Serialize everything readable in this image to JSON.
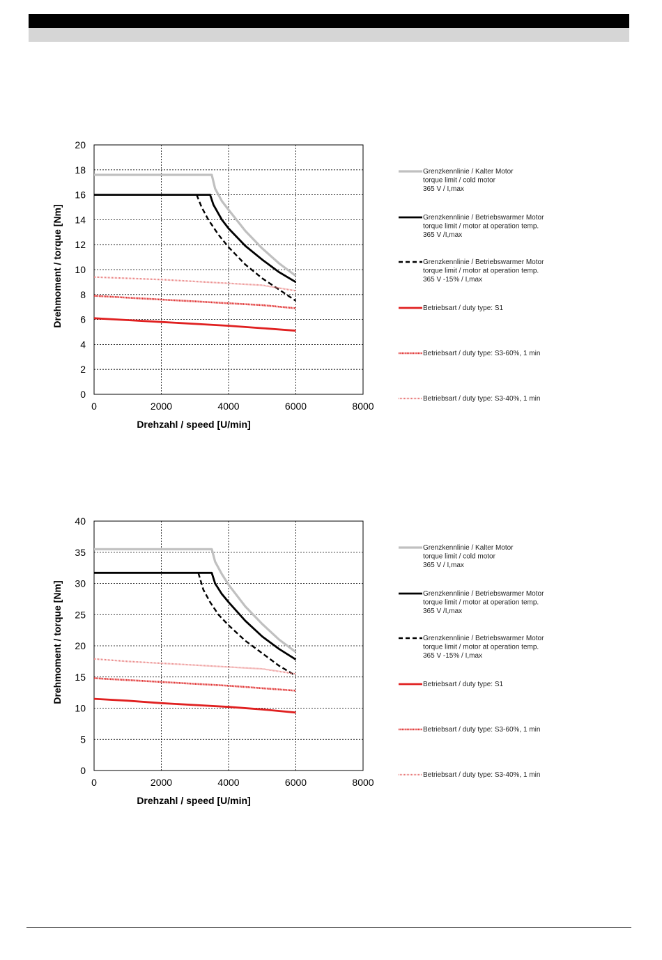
{
  "colors": {
    "cold_limit": "#c0c0c0",
    "warm_limit": "#000000",
    "warm_limit_reduced": "#000000",
    "s1": "#e02020",
    "s3_60": "#e03030",
    "s3_40": "#e87878",
    "grid": "#000000"
  },
  "chart_data": [
    {
      "type": "line",
      "xlabel": "Drehzahl / speed [U/min]",
      "ylabel": "Drehmoment / torque [Nm]",
      "xlim": [
        0,
        8000
      ],
      "ylim": [
        0,
        20
      ],
      "xticks": [
        "0",
        "2000",
        "4000",
        "6000",
        "8000"
      ],
      "yticks": [
        "0",
        "2",
        "4",
        "6",
        "8",
        "10",
        "12",
        "14",
        "16",
        "18",
        "20"
      ],
      "grid": true,
      "legend_position": "right",
      "series": [
        {
          "key": "cold",
          "legend": [
            "Grenzkennlinie / Kalter Motor",
            "torque limit / cold  motor",
            "365 V / I,max"
          ],
          "x": [
            0,
            3500,
            3600,
            3800,
            4000,
            4500,
            5000,
            5500,
            6000
          ],
          "y": [
            17.6,
            17.6,
            16.5,
            15.5,
            14.8,
            13.1,
            11.7,
            10.5,
            9.5
          ]
        },
        {
          "key": "warm",
          "legend": [
            "Grenzkennlinie / Betriebswarmer Motor",
            "torque limit / motor at operation temp.",
            "365 V /I,max"
          ],
          "x": [
            0,
            3450,
            3550,
            3800,
            4000,
            4500,
            5000,
            5500,
            6000
          ],
          "y": [
            16.0,
            16.0,
            15.2,
            14.0,
            13.3,
            11.9,
            10.8,
            9.8,
            9.0
          ]
        },
        {
          "key": "warm_reduced",
          "legend": [
            "Grenzkennlinie / Betriebswarmer Motor",
            "torque limit / motor at operation temp.",
            "365 V  -15% / I,max"
          ],
          "x": [
            3050,
            3200,
            3400,
            3700,
            4000,
            4500,
            5000,
            5500,
            6000
          ],
          "y": [
            16.0,
            15.0,
            14.0,
            12.8,
            11.8,
            10.4,
            9.3,
            8.4,
            7.5
          ]
        },
        {
          "key": "s1",
          "legend": [
            "Betriebsart / duty type: S1"
          ],
          "x": [
            0,
            1000,
            2000,
            3000,
            4000,
            5000,
            6000
          ],
          "y": [
            6.1,
            5.95,
            5.8,
            5.65,
            5.5,
            5.3,
            5.1
          ]
        },
        {
          "key": "s3_60",
          "legend": [
            "Betriebsart / duty type: S3-60%, 1 min"
          ],
          "x": [
            0,
            1000,
            2000,
            3000,
            4000,
            5000,
            6000
          ],
          "y": [
            7.9,
            7.75,
            7.6,
            7.45,
            7.3,
            7.15,
            6.9
          ]
        },
        {
          "key": "s3_40",
          "legend": [
            "Betriebsart / duty type: S3-40%, 1 min"
          ],
          "x": [
            0,
            1000,
            2000,
            3000,
            4000,
            5000,
            6000
          ],
          "y": [
            9.4,
            9.3,
            9.2,
            9.05,
            8.9,
            8.75,
            8.3
          ]
        }
      ]
    },
    {
      "type": "line",
      "xlabel": "Drehzahl / speed [U/min]",
      "ylabel": "Drehmoment / torque [Nm]",
      "xlim": [
        0,
        8000
      ],
      "ylim": [
        0,
        40
      ],
      "xticks": [
        "0",
        "2000",
        "4000",
        "6000",
        "8000"
      ],
      "yticks": [
        "0",
        "5",
        "10",
        "15",
        "20",
        "25",
        "30",
        "35",
        "40"
      ],
      "grid": true,
      "legend_position": "right",
      "series": [
        {
          "key": "cold",
          "legend": [
            "Grenzkennlinie / Kalter Motor",
            "torque limit / cold  motor",
            "365 V / I,max"
          ],
          "x": [
            0,
            3500,
            3600,
            3800,
            4000,
            4500,
            5000,
            5500,
            6000
          ],
          "y": [
            35.5,
            35.5,
            33.5,
            31.5,
            29.8,
            26.3,
            23.5,
            21.0,
            19.0
          ]
        },
        {
          "key": "warm",
          "legend": [
            "Grenzkennlinie / Betriebswarmer Motor",
            "torque limit / motor at operation temp.",
            "365 V /I,max"
          ],
          "x": [
            0,
            3500,
            3600,
            3800,
            4000,
            4500,
            5000,
            5500,
            6000
          ],
          "y": [
            31.7,
            31.7,
            30.0,
            28.3,
            27.0,
            24.0,
            21.5,
            19.5,
            17.8
          ]
        },
        {
          "key": "warm_reduced",
          "legend": [
            "Grenzkennlinie / Betriebswarmer Motor",
            "torque limit / motor at operation temp.",
            "365 V  -15% / I,max"
          ],
          "x": [
            3100,
            3250,
            3450,
            3700,
            4000,
            4500,
            5000,
            5500,
            6000
          ],
          "y": [
            31.7,
            29.0,
            27.0,
            25.0,
            23.3,
            20.8,
            18.8,
            16.8,
            15.2
          ]
        },
        {
          "key": "s1",
          "legend": [
            "Betriebsart / duty type: S1"
          ],
          "x": [
            0,
            1000,
            2000,
            3000,
            4000,
            5000,
            6000
          ],
          "y": [
            11.5,
            11.2,
            10.8,
            10.5,
            10.2,
            9.8,
            9.3
          ]
        },
        {
          "key": "s3_60",
          "legend": [
            "Betriebsart / duty type: S3-60%, 1 min"
          ],
          "x": [
            0,
            1000,
            2000,
            3000,
            4000,
            5000,
            6000
          ],
          "y": [
            14.8,
            14.5,
            14.2,
            13.9,
            13.6,
            13.2,
            12.8
          ]
        },
        {
          "key": "s3_40",
          "legend": [
            "Betriebsart / duty type: S3-40%, 1 min"
          ],
          "x": [
            0,
            1000,
            2000,
            3000,
            4000,
            5000,
            6000
          ],
          "y": [
            17.9,
            17.5,
            17.2,
            16.9,
            16.6,
            16.3,
            15.5
          ]
        }
      ]
    }
  ]
}
